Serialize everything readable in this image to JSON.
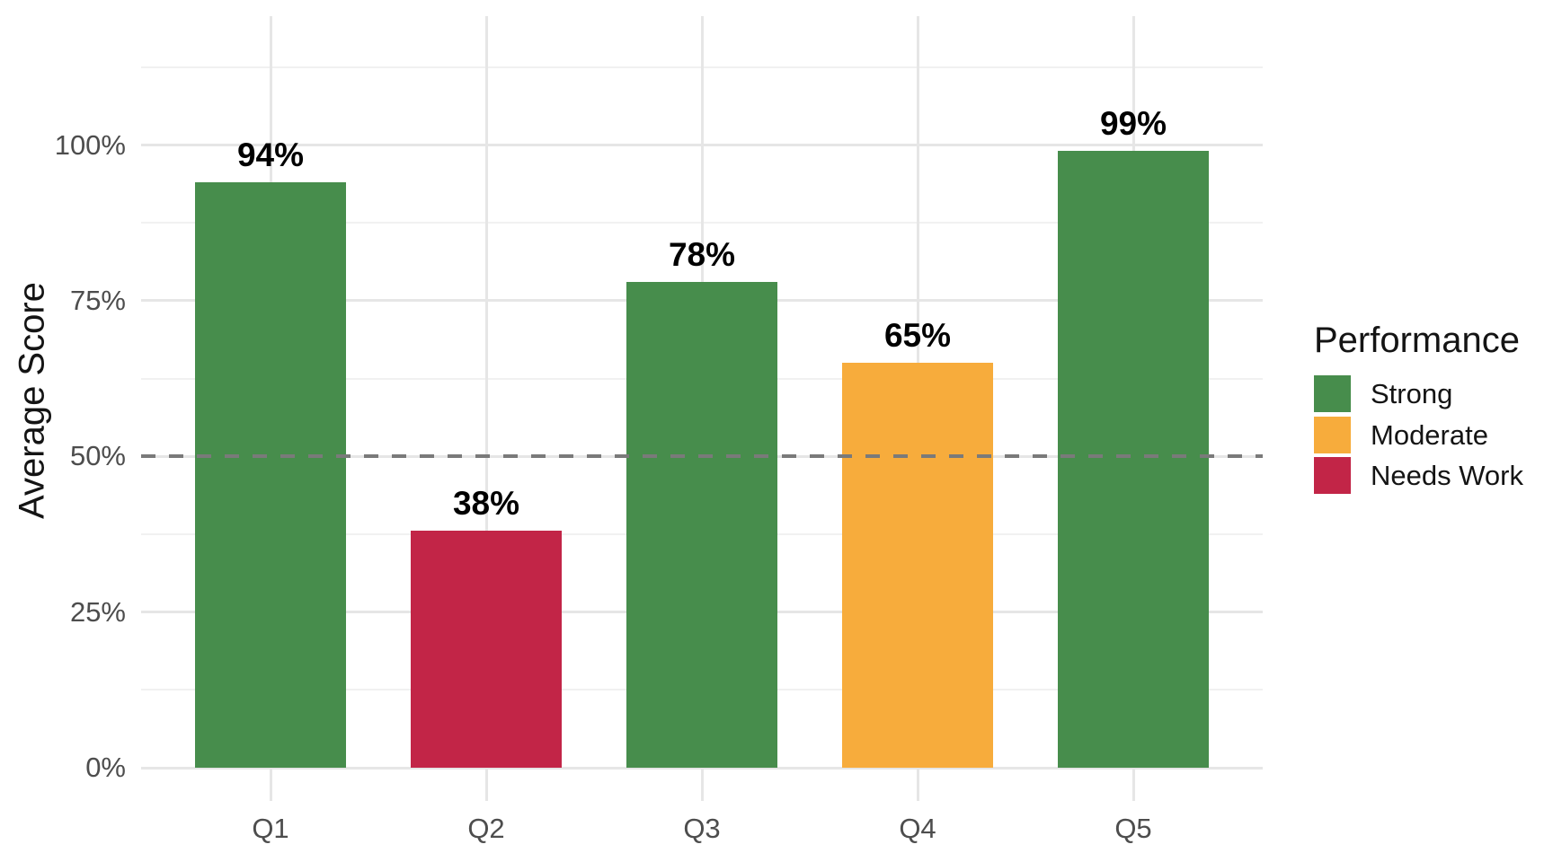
{
  "chart_data": {
    "type": "bar",
    "categories": [
      "Q1",
      "Q2",
      "Q3",
      "Q4",
      "Q5"
    ],
    "values": [
      94,
      38,
      78,
      65,
      99
    ],
    "value_labels": [
      "94%",
      "38%",
      "78%",
      "65%",
      "99%"
    ],
    "bar_performance": [
      "Strong",
      "Needs Work",
      "Strong",
      "Moderate",
      "Strong"
    ],
    "bar_colors": [
      "#478D4C",
      "#C22547",
      "#478D4C",
      "#F7AC3C",
      "#478D4C"
    ],
    "title": "",
    "xlabel": "",
    "ylabel": "Average Score",
    "ylim": [
      0,
      121
    ],
    "y_major_ticks": {
      "values": [
        0,
        25,
        50,
        75,
        100
      ],
      "labels": [
        "0%",
        "25%",
        "50%",
        "75%",
        "100%"
      ]
    },
    "y_minor_ticks": [
      12.5,
      37.5,
      62.5,
      87.5,
      112.5
    ],
    "grid": "on",
    "reference_line": {
      "value": 50,
      "style": "dashed",
      "color": "#7A7A7A"
    },
    "legend": {
      "title": "Performance",
      "position": "right",
      "entries": [
        {
          "label": "Strong",
          "color": "#478D4C"
        },
        {
          "label": "Moderate",
          "color": "#F7AC3C"
        },
        {
          "label": "Needs Work",
          "color": "#C22547"
        }
      ]
    },
    "colors": {
      "background": "#FFFFFF",
      "axis_text": "#4D4D4D",
      "title_text": "#141414",
      "grid_major": "#E6E6E6",
      "grid_minor": "#F1F1F1",
      "value_label_text": "#000000"
    }
  }
}
